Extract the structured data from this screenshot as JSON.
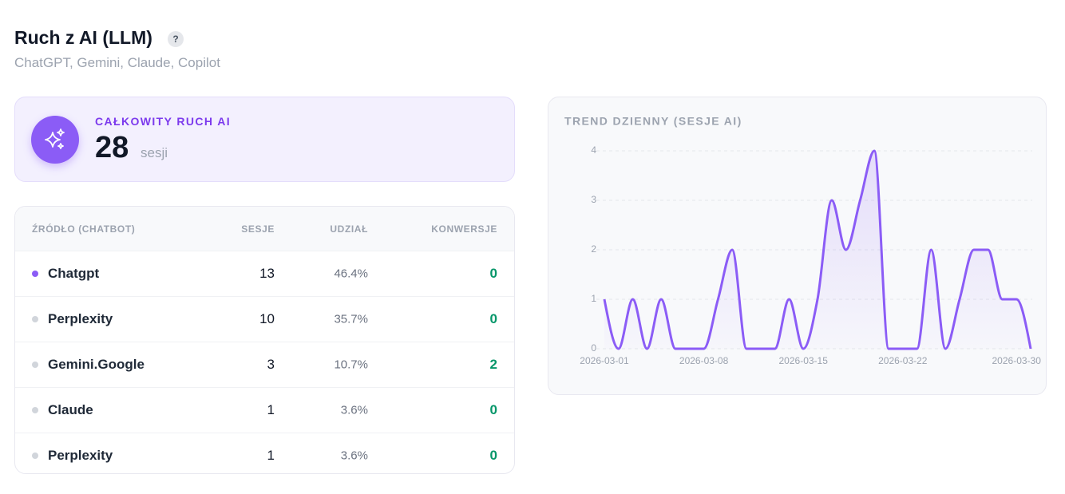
{
  "header": {
    "title": "Ruch z AI (LLM)",
    "help": "?",
    "subtitle": "ChatGPT, Gemini, Claude, Copilot"
  },
  "summary": {
    "label": "CAŁKOWITY RUCH AI",
    "value": 28,
    "unit": "sesji"
  },
  "table": {
    "columns": [
      "ŹRÓDŁO (CHATBOT)",
      "SESJE",
      "UDZIAŁ",
      "KONWERSJE"
    ],
    "rows": [
      [
        "Chatgpt",
        13,
        "46.4%",
        0
      ],
      [
        "Perplexity",
        10,
        "35.7%",
        0
      ],
      [
        "Gemini.Google",
        3,
        "10.7%",
        2
      ],
      [
        "Claude",
        1,
        "3.6%",
        0
      ],
      [
        "Perplexity",
        1,
        "3.6%",
        0
      ]
    ]
  },
  "chart_data": {
    "type": "line",
    "title": "TREND DZIENNY (SESJE AI)",
    "x": [
      "2026-03-01",
      "2026-03-02",
      "2026-03-03",
      "2026-03-04",
      "2026-03-05",
      "2026-03-06",
      "2026-03-07",
      "2026-03-08",
      "2026-03-09",
      "2026-03-10",
      "2026-03-11",
      "2026-03-12",
      "2026-03-13",
      "2026-03-14",
      "2026-03-15",
      "2026-03-16",
      "2026-03-17",
      "2026-03-18",
      "2026-03-19",
      "2026-03-20",
      "2026-03-21",
      "2026-03-22",
      "2026-03-23",
      "2026-03-24",
      "2026-03-25",
      "2026-03-26",
      "2026-03-27",
      "2026-03-28",
      "2026-03-29",
      "2026-03-30",
      "2026-03-31"
    ],
    "xticks": [
      "2026-03-01",
      "2026-03-08",
      "2026-03-15",
      "2026-03-22",
      "2026-03-30"
    ],
    "series": [
      {
        "color": "#8b5cf6",
        "values": [
          1,
          0,
          1,
          0,
          1,
          0,
          0,
          0,
          1,
          2,
          0,
          0,
          0,
          1,
          0,
          1,
          3,
          2,
          3,
          4,
          0,
          0,
          0,
          2,
          0,
          1,
          2,
          2,
          1,
          1,
          0
        ]
      }
    ],
    "ylim": [
      0,
      4
    ],
    "yticks": [
      0,
      1,
      2,
      3,
      4
    ],
    "grid": true
  }
}
